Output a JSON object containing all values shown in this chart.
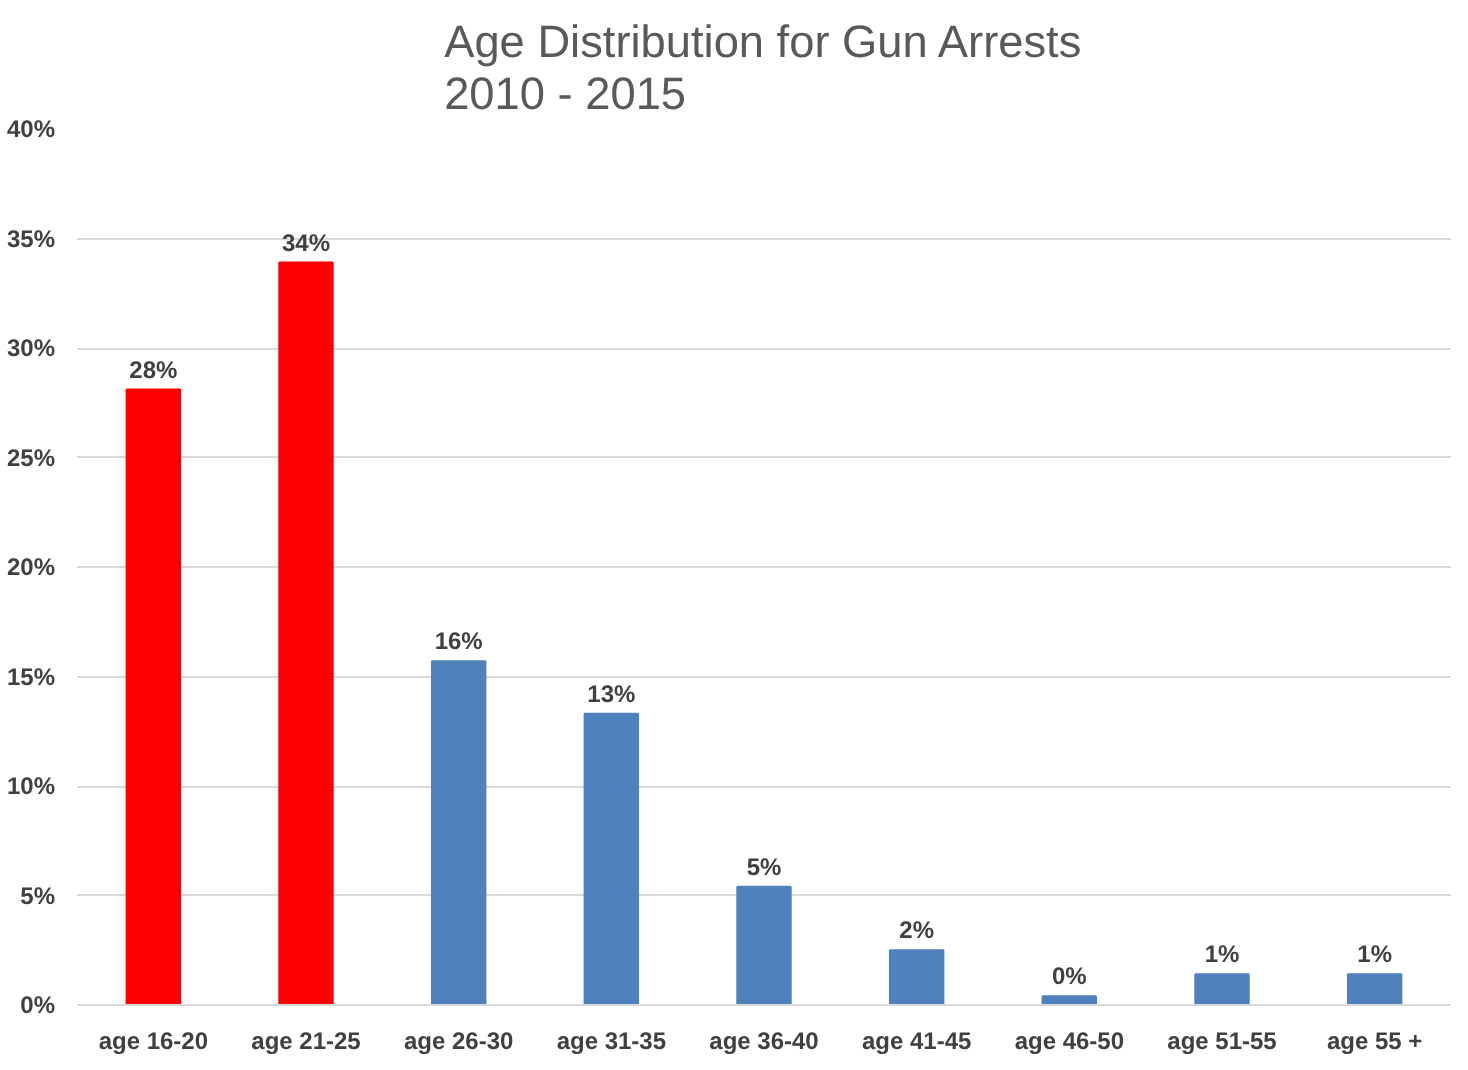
{
  "chart_data": {
    "type": "bar",
    "title": "Age Distribution for Gun Arrests\n2010 - 2015",
    "categories": [
      "age 16-20",
      "age 21-25",
      "age 26-30",
      "age 31-35",
      "age 36-40",
      "age 41-45",
      "age 46-50",
      "age 51-55",
      "age 55 +"
    ],
    "values": [
      28.1,
      33.9,
      15.7,
      13.3,
      5.4,
      2.5,
      0.4,
      1.4,
      1.4
    ],
    "colors": [
      "#ff0000",
      "#ff0000",
      "#4f81bd",
      "#4f81bd",
      "#4f81bd",
      "#4f81bd",
      "#4f81bd",
      "#4f81bd",
      "#4f81bd"
    ],
    "value_labels": [
      "28%",
      "34%",
      "16%",
      "13%",
      "5%",
      "2%",
      "0%",
      "1%",
      "1%"
    ],
    "ylim": [
      0,
      40
    ],
    "yticks": [
      {
        "value": 0,
        "label": "0%"
      },
      {
        "value": 5,
        "label": "5%"
      },
      {
        "value": 10,
        "label": "10%"
      },
      {
        "value": 15,
        "label": "15%"
      },
      {
        "value": 20,
        "label": "20%"
      },
      {
        "value": 25,
        "label": "25%"
      },
      {
        "value": 30,
        "label": "30%"
      },
      {
        "value": 35,
        "label": "35%"
      },
      {
        "value": 40,
        "label": "40%"
      }
    ],
    "grid": "y"
  }
}
